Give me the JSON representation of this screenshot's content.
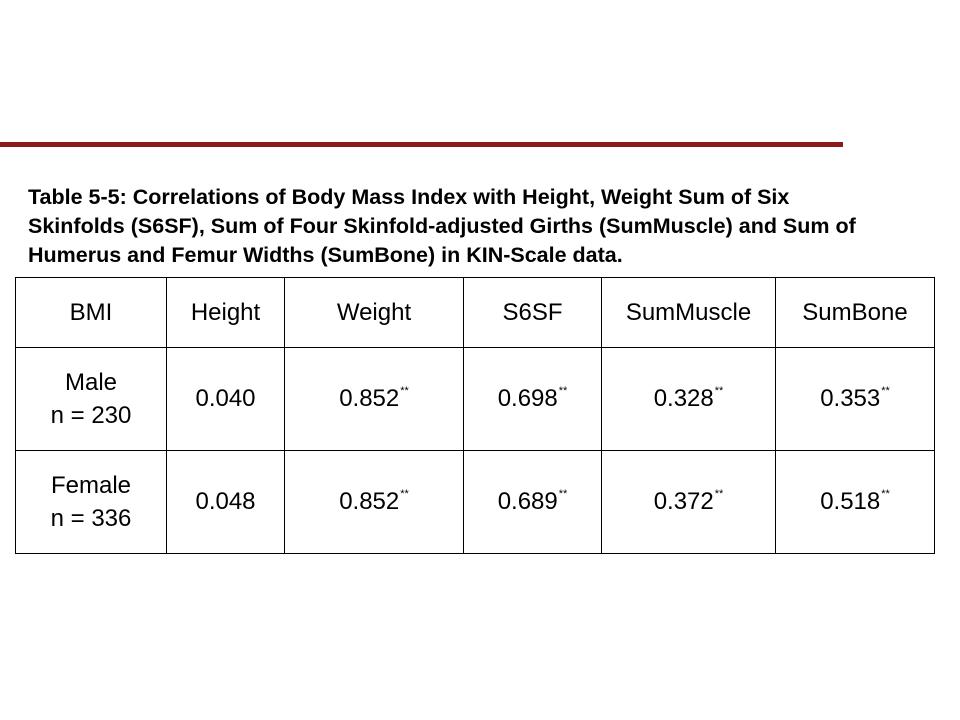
{
  "caption_lines": [
    "Table 5-5: Correlations of Body Mass Index with Height, Weight Sum of Six",
    "Skinfolds (S6SF), Sum of Four Skinfold-adjusted Girths (SumMuscle) and Sum of",
    "Humerus and Femur Widths (SumBone) in KIN-Scale data."
  ],
  "table": {
    "header": [
      "BMI",
      "Height",
      "Weight",
      "S6SF",
      "SumMuscle",
      "SumBone"
    ],
    "rows": [
      {
        "label": [
          "Male",
          "n = 230"
        ],
        "cells": [
          {
            "value": "0.040"
          },
          {
            "value": "0.852",
            "mark": "**"
          },
          {
            "value": "0.698",
            "mark": "**"
          },
          {
            "value": "0.328",
            "mark": "**"
          },
          {
            "value": "0.353",
            "mark": "**"
          }
        ]
      },
      {
        "label": [
          "Female",
          "n = 336"
        ],
        "cells": [
          {
            "value": "0.048"
          },
          {
            "value": "0.852",
            "mark": "**"
          },
          {
            "value": "0.689",
            "mark": "**"
          },
          {
            "value": "0.372",
            "mark": "**"
          },
          {
            "value": "0.518",
            "mark": "**"
          }
        ]
      }
    ]
  }
}
